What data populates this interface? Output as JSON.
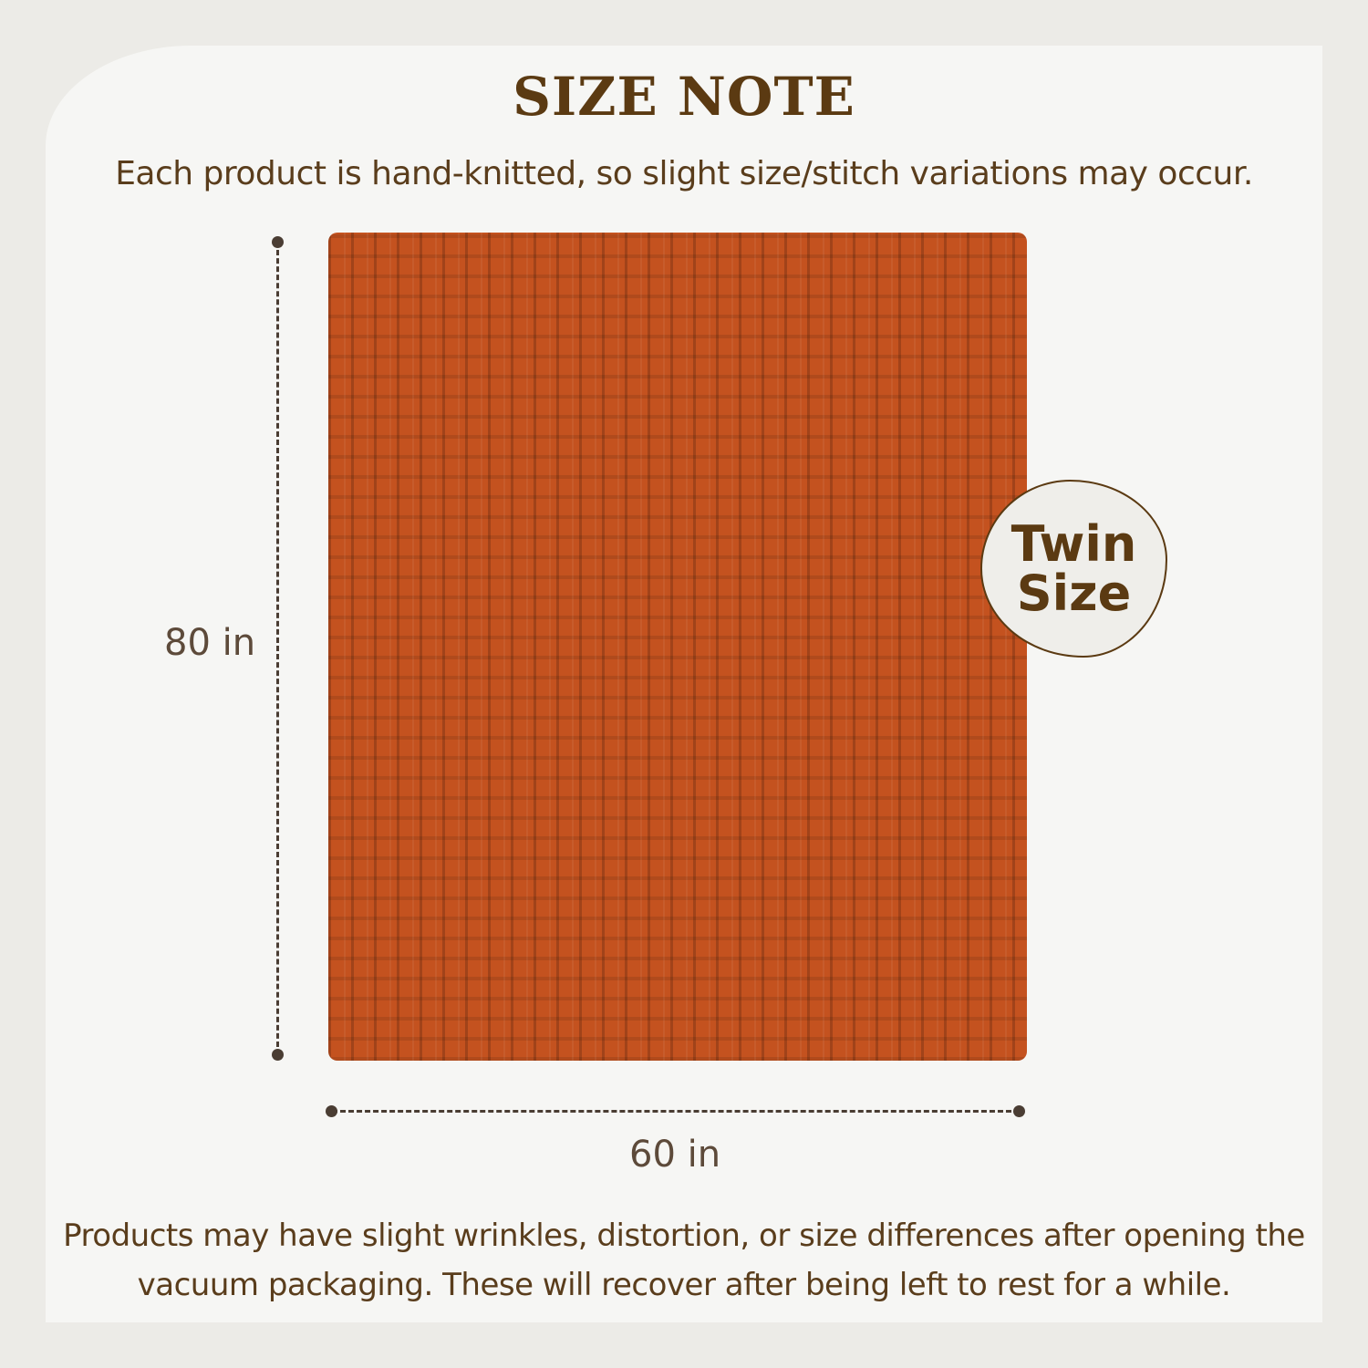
{
  "header": {
    "title": "SIZE NOTE",
    "subtitle": "Each product is hand-knitted, so slight size/stitch variations may occur."
  },
  "product": {
    "color": "#c4521f",
    "height_label": "80 in",
    "width_label": "60 in",
    "badge": {
      "line1": "Twin",
      "line2": "Size"
    }
  },
  "footer": {
    "line1": "Products may have slight wrinkles, distortion, or size differences after opening the",
    "line2": "vacuum packaging. These will recover after being left to rest for a while."
  }
}
